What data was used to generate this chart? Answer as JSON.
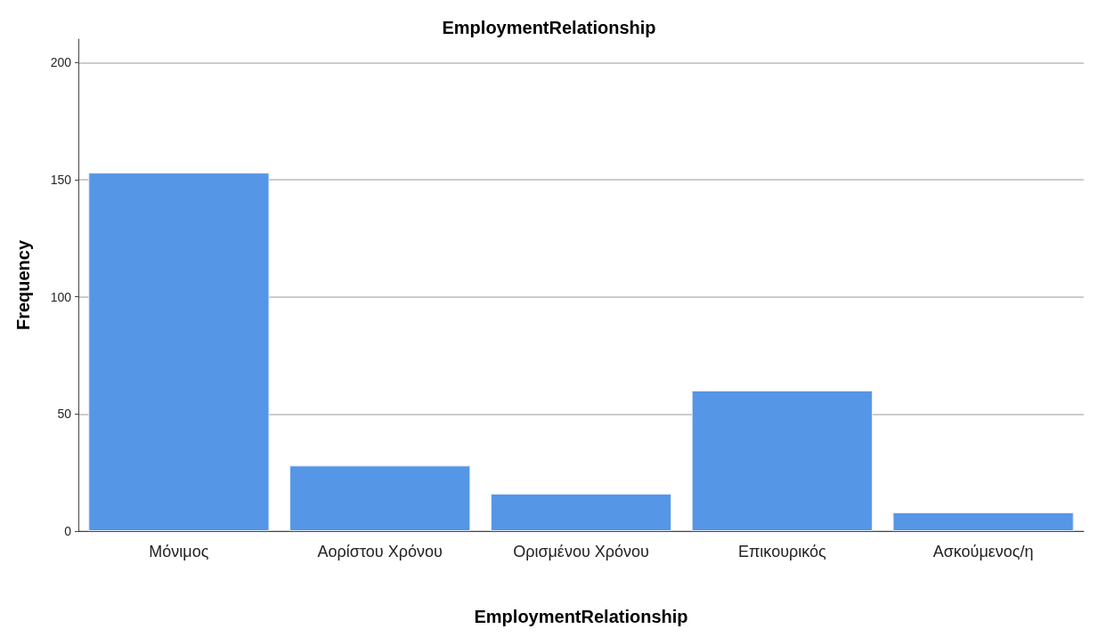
{
  "chart_data": {
    "type": "bar",
    "title": "EmploymentRelationship",
    "xlabel": "EmploymentRelationship",
    "ylabel": "Frequency",
    "categories": [
      "Μόνιμος",
      "Αορίστου Χρόνου",
      "Ορισμένου Χρόνου",
      "Επικουρικός",
      "Ασκούμενος/η"
    ],
    "values": [
      153,
      28,
      16,
      60,
      8
    ],
    "color": "#5596e6",
    "ylim": [
      0,
      210
    ],
    "yticks": [
      0,
      50,
      100,
      150,
      200
    ],
    "grid": "y"
  }
}
